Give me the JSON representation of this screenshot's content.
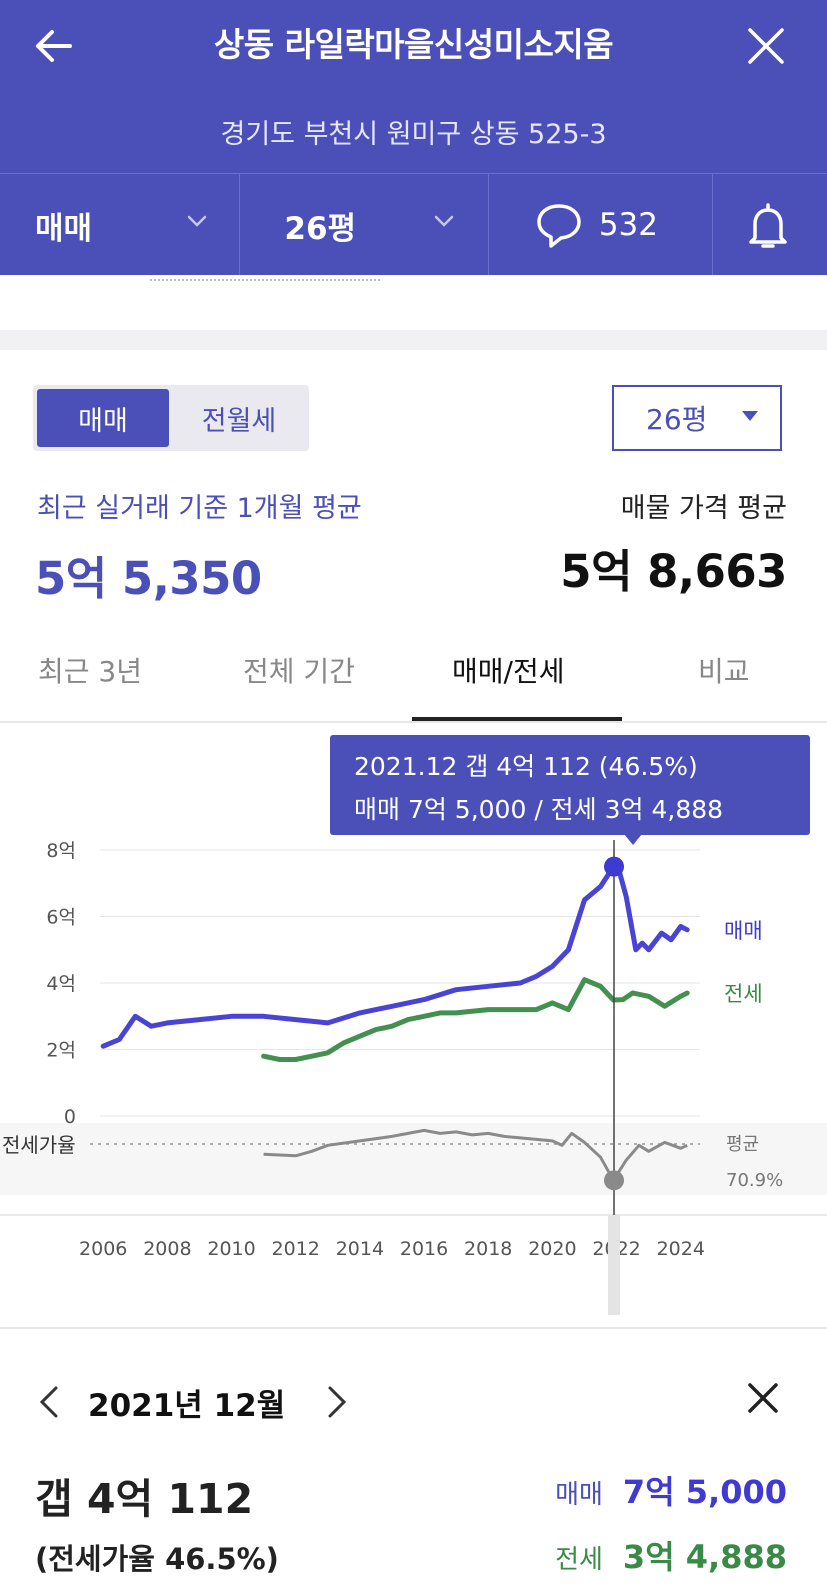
{
  "header": {
    "title": "상동 라일락마을신성미소지움",
    "address": "경기도 부천시 원미구 상동 525-3",
    "filter_trade": "매매",
    "filter_size": "26평",
    "comment_count": "532"
  },
  "controls": {
    "seg_active": "매매",
    "seg_inactive": "전월세",
    "size_select": "26평"
  },
  "summary": {
    "left_label": "최근 실거래 기준 1개월 평균",
    "left_value": "5억 5,350",
    "right_label": "매물 가격 평균",
    "right_value": "5억 8,663"
  },
  "tabs": [
    "최근 3년",
    "전체 기간",
    "매매/전세",
    "비교"
  ],
  "active_tab": "매매/전세",
  "tooltip": {
    "line1": "2021.12  갭 4억 112 (46.5%)",
    "line2": "매매 7억 5,000 / 전세 3억 4,888"
  },
  "colors": {
    "brand": "#4b50b8",
    "sale": "#3f3ad1",
    "jeonse": "#3a8a47",
    "ratio": "#8a8a8a"
  },
  "chart_data": {
    "type": "line",
    "x_ticks": [
      "2006",
      "2008",
      "2010",
      "2012",
      "2014",
      "2016",
      "2018",
      "2020",
      "2022",
      "2024"
    ],
    "y_ticks": [
      "8억",
      "6억",
      "4억",
      "2억",
      "0"
    ],
    "ylim": [
      0,
      8
    ],
    "xlim": [
      2005.9,
      2024.6
    ],
    "unit": "억",
    "series": [
      {
        "name": "매매",
        "color": "#3f3ad1",
        "x": [
          2006,
          2006.5,
          2007,
          2007.5,
          2008,
          2009,
          2010,
          2011,
          2012,
          2013,
          2014,
          2015,
          2016,
          2017,
          2018,
          2019,
          2019.5,
          2020,
          2020.5,
          2021,
          2021.5,
          2021.9,
          2022.1,
          2022.3,
          2022.6,
          2022.8,
          2023,
          2023.4,
          2023.7,
          2024,
          2024.2
        ],
        "y": [
          2.1,
          2.3,
          3.0,
          2.7,
          2.8,
          2.9,
          3.0,
          3.0,
          2.9,
          2.8,
          3.1,
          3.3,
          3.5,
          3.8,
          3.9,
          4.0,
          4.2,
          4.5,
          5.0,
          6.5,
          6.9,
          7.5,
          7.3,
          6.6,
          5.0,
          5.2,
          5.0,
          5.5,
          5.3,
          5.7,
          5.6
        ]
      },
      {
        "name": "전세",
        "color": "#3a8a47",
        "x": [
          2011,
          2011.5,
          2012,
          2012.5,
          2013,
          2013.5,
          2014,
          2014.5,
          2015,
          2015.5,
          2016,
          2016.5,
          2017,
          2018,
          2019,
          2019.5,
          2020,
          2020.5,
          2021,
          2021.5,
          2021.9,
          2022.2,
          2022.5,
          2023,
          2023.5,
          2024,
          2024.2
        ],
        "y": [
          1.8,
          1.7,
          1.7,
          1.8,
          1.9,
          2.2,
          2.4,
          2.6,
          2.7,
          2.9,
          3.0,
          3.1,
          3.1,
          3.2,
          3.2,
          3.2,
          3.4,
          3.2,
          4.1,
          3.9,
          3.49,
          3.5,
          3.7,
          3.6,
          3.3,
          3.6,
          3.7
        ]
      }
    ],
    "ratio_label": "전세가율",
    "ratio_avg_label": "평균",
    "ratio_avg_value": "70.9%",
    "ratio": {
      "avg": 70.9,
      "x": [
        2011,
        2012,
        2012.5,
        2013,
        2014,
        2015,
        2016,
        2016.5,
        2017,
        2017.5,
        2018,
        2018.5,
        2019,
        2020,
        2020.3,
        2020.6,
        2021,
        2021.5,
        2021.9,
        2022.3,
        2022.7,
        2023,
        2023.5,
        2024,
        2024.2
      ],
      "y": [
        64,
        63,
        66,
        70,
        73,
        76,
        80,
        78,
        79,
        77,
        78,
        76,
        75,
        73,
        70,
        78,
        72,
        62,
        46.5,
        60,
        70,
        66,
        72,
        68,
        70
      ]
    },
    "highlight": {
      "x": 2021.92,
      "sale": 7.5,
      "jeonse": 3.4888,
      "ratio": 46.5,
      "label": "2021.12"
    }
  },
  "detail": {
    "month": "2021년 12월",
    "gap": "갭 4억 112",
    "ratio": "(전세가율 46.5%)",
    "sale_label": "매매",
    "sale_value": "7억 5,000",
    "jeonse_label": "전세",
    "jeonse_value": "3억 4,888"
  }
}
